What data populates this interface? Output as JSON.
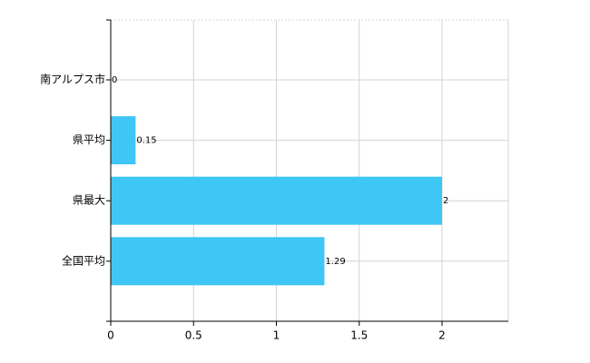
{
  "chart_data": {
    "type": "bar",
    "orientation": "horizontal",
    "categories": [
      "南アルプス市",
      "県平均",
      "県最大",
      "全国平均"
    ],
    "values": [
      0,
      0.15,
      2,
      1.29
    ],
    "color": "#3ec6f5",
    "xlim": [
      0,
      2.4
    ],
    "xticks": [
      0,
      0.5,
      1,
      1.5,
      2
    ],
    "grid": true,
    "data_labels": true
  }
}
